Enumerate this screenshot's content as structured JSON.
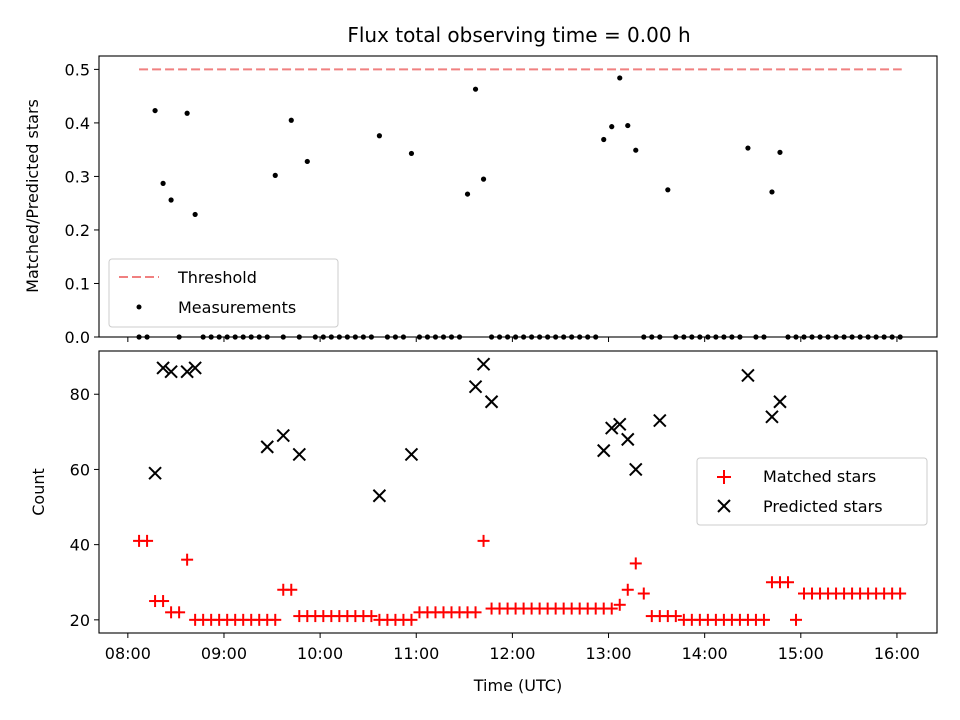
{
  "chart_data": [
    {
      "type": "scatter",
      "title": "Flux total observing time = 0.00 h",
      "ylabel": "Matched/Predicted stars",
      "xlabel": "",
      "xlim": [
        "07:42",
        "16:25"
      ],
      "ylim": [
        0,
        0.525
      ],
      "x_ticks": [
        "08:00",
        "09:00",
        "10:00",
        "11:00",
        "12:00",
        "13:00",
        "14:00",
        "15:00",
        "16:00"
      ],
      "y_ticks": [
        "0.0",
        "0.1",
        "0.2",
        "0.3",
        "0.4",
        "0.5"
      ],
      "legend": {
        "placement": "lower-left"
      },
      "series": [
        {
          "name": "Threshold",
          "kind": "dashed-line",
          "color": "#f08080",
          "x": [
            "08:07",
            "16:03"
          ],
          "y": [
            0.5,
            0.5
          ]
        },
        {
          "name": "Measurements",
          "kind": "points",
          "color": "#000000",
          "x": [
            "08:07",
            "08:12",
            "08:17",
            "08:22",
            "08:27",
            "08:32",
            "08:37",
            "08:42",
            "08:47",
            "08:52",
            "08:57",
            "09:02",
            "09:07",
            "09:12",
            "09:17",
            "09:22",
            "09:27",
            "09:32",
            "09:37",
            "09:42",
            "09:47",
            "09:52",
            "09:57",
            "10:02",
            "10:07",
            "10:12",
            "10:17",
            "10:22",
            "10:27",
            "10:32",
            "10:37",
            "10:42",
            "10:47",
            "10:52",
            "10:57",
            "11:02",
            "11:07",
            "11:12",
            "11:17",
            "11:22",
            "11:27",
            "11:32",
            "11:37",
            "11:42",
            "11:47",
            "11:52",
            "11:57",
            "12:02",
            "12:07",
            "12:12",
            "12:17",
            "12:22",
            "12:27",
            "12:32",
            "12:37",
            "12:42",
            "12:47",
            "12:52",
            "12:57",
            "13:02",
            "13:07",
            "13:12",
            "13:17",
            "13:22",
            "13:27",
            "13:32",
            "13:37",
            "13:42",
            "13:47",
            "13:52",
            "13:57",
            "14:02",
            "14:07",
            "14:12",
            "14:17",
            "14:22",
            "14:27",
            "14:32",
            "14:37",
            "14:42",
            "14:47",
            "14:52",
            "14:57",
            "15:02",
            "15:07",
            "15:12",
            "15:17",
            "15:22",
            "15:27",
            "15:32",
            "15:37",
            "15:42",
            "15:47",
            "15:52",
            "15:57",
            "16:02"
          ],
          "y": [
            0,
            0,
            0.423,
            0.287,
            0.256,
            0,
            0.418,
            0.229,
            0,
            0,
            0,
            0,
            0,
            0,
            0,
            0,
            0,
            0.302,
            0,
            0.405,
            0,
            0.328,
            0,
            0,
            0,
            0,
            0,
            0,
            0,
            0,
            0.376,
            0,
            0,
            0,
            0.343,
            0,
            0,
            0,
            0,
            0,
            0,
            0.267,
            0.463,
            0.295,
            0,
            0,
            0,
            0,
            0,
            0,
            0,
            0,
            0,
            0,
            0,
            0,
            0,
            0,
            0.369,
            0.393,
            0.484,
            0.395,
            0.349,
            0,
            0,
            0,
            0.275,
            0,
            0,
            0,
            0,
            0,
            0,
            0,
            0,
            0,
            0.353,
            0,
            0,
            0.271,
            0.345,
            0,
            0,
            0,
            0,
            0,
            0,
            0,
            0,
            0,
            0,
            0,
            0,
            0,
            0,
            0
          ]
        }
      ]
    },
    {
      "type": "scatter",
      "title": "",
      "ylabel": "Count",
      "xlabel": "Time (UTC)",
      "xlim": [
        "07:42",
        "16:25"
      ],
      "ylim": [
        16.5,
        91.5
      ],
      "x_ticks": [
        "08:00",
        "09:00",
        "10:00",
        "11:00",
        "12:00",
        "13:00",
        "14:00",
        "15:00",
        "16:00"
      ],
      "y_ticks": [
        "20",
        "40",
        "60",
        "80"
      ],
      "legend": {
        "placement": "center-right"
      },
      "series": [
        {
          "name": "Matched stars",
          "kind": "plus",
          "color": "#ff0000",
          "x": [
            "08:07",
            "08:12",
            "08:17",
            "08:22",
            "08:27",
            "08:32",
            "08:37",
            "08:42",
            "08:47",
            "08:52",
            "08:57",
            "09:02",
            "09:07",
            "09:12",
            "09:17",
            "09:22",
            "09:27",
            "09:32",
            "09:37",
            "09:42",
            "09:47",
            "09:52",
            "09:57",
            "10:02",
            "10:07",
            "10:12",
            "10:17",
            "10:22",
            "10:27",
            "10:32",
            "10:37",
            "10:42",
            "10:47",
            "10:52",
            "10:57",
            "11:02",
            "11:07",
            "11:12",
            "11:17",
            "11:22",
            "11:27",
            "11:32",
            "11:37",
            "11:42",
            "11:47",
            "11:52",
            "11:57",
            "12:02",
            "12:07",
            "12:12",
            "12:17",
            "12:22",
            "12:27",
            "12:32",
            "12:37",
            "12:42",
            "12:47",
            "12:52",
            "12:57",
            "13:02",
            "13:07",
            "13:12",
            "13:17",
            "13:22",
            "13:27",
            "13:32",
            "13:37",
            "13:42",
            "13:47",
            "13:52",
            "13:57",
            "14:02",
            "14:07",
            "14:12",
            "14:17",
            "14:22",
            "14:27",
            "14:32",
            "14:37",
            "14:42",
            "14:47",
            "14:52",
            "14:57",
            "15:02",
            "15:07",
            "15:12",
            "15:17",
            "15:22",
            "15:27",
            "15:32",
            "15:37",
            "15:42",
            "15:47",
            "15:52",
            "15:57",
            "16:02"
          ],
          "y": [
            41,
            41,
            25,
            25,
            22,
            22,
            36,
            20,
            20,
            20,
            20,
            20,
            20,
            20,
            20,
            20,
            20,
            20,
            28,
            28,
            21,
            21,
            21,
            21,
            21,
            21,
            21,
            21,
            21,
            21,
            20,
            20,
            20,
            20,
            20,
            22,
            22,
            22,
            22,
            22,
            22,
            22,
            22,
            41,
            23,
            23,
            23,
            23,
            23,
            23,
            23,
            23,
            23,
            23,
            23,
            23,
            23,
            23,
            23,
            23,
            24,
            28,
            35,
            27,
            21,
            21,
            21,
            21,
            20,
            20,
            20,
            20,
            20,
            20,
            20,
            20,
            20,
            20,
            20,
            30,
            30,
            30,
            20,
            27,
            27,
            27,
            27,
            27,
            27,
            27,
            27,
            27,
            27,
            27,
            27,
            27
          ]
        },
        {
          "name": "Predicted stars",
          "kind": "cross",
          "color": "#000000",
          "x": [
            "08:17",
            "08:22",
            "08:27",
            "08:37",
            "08:42",
            "09:27",
            "09:37",
            "09:47",
            "10:37",
            "10:57",
            "11:37",
            "11:42",
            "11:47",
            "12:57",
            "13:02",
            "13:07",
            "13:12",
            "13:17",
            "13:32",
            "14:27",
            "14:42",
            "14:47"
          ],
          "y": [
            59,
            87,
            86,
            86,
            87,
            66,
            69,
            64,
            53,
            64,
            82,
            88,
            78,
            65,
            71,
            72,
            68,
            60,
            73,
            85,
            74,
            78
          ]
        }
      ]
    }
  ]
}
